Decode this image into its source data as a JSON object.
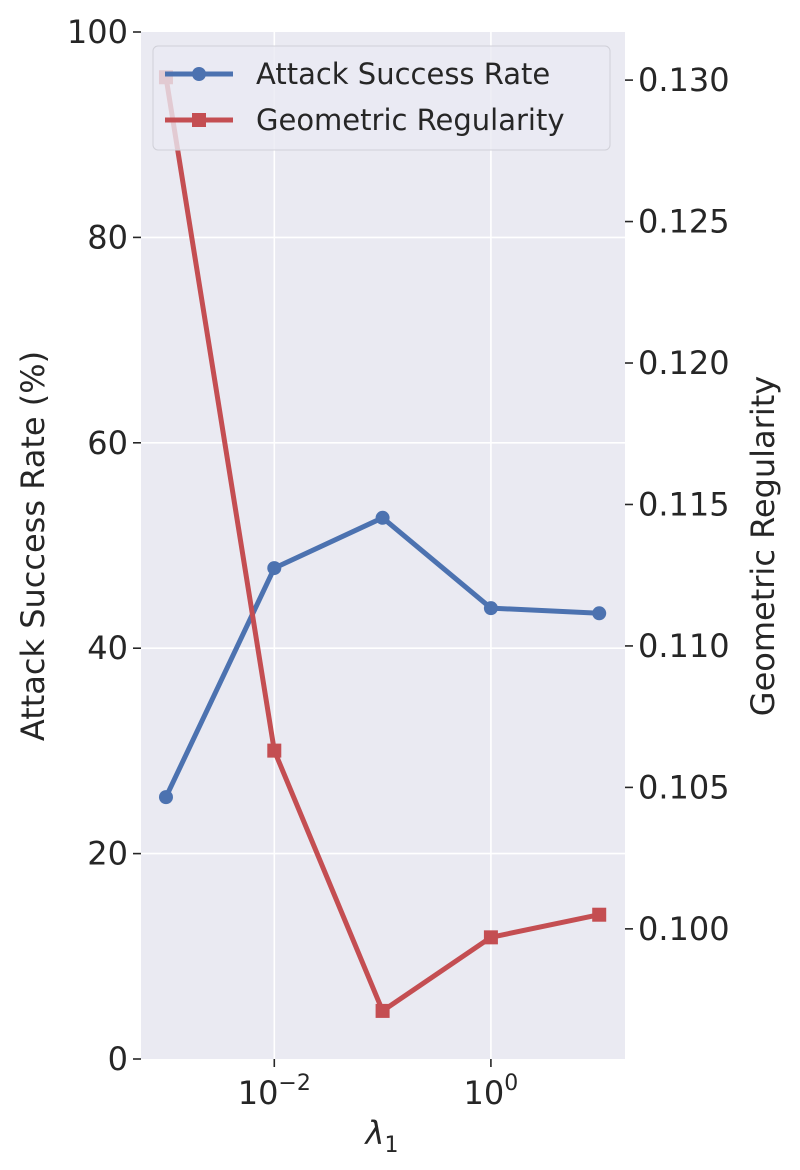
{
  "chart_data": {
    "type": "line",
    "x_scale": "log",
    "x": [
      0.001,
      0.01,
      0.1,
      1,
      10
    ],
    "xlabel": "λ",
    "xlabel_subscript": "1",
    "xtick_labels": [
      {
        "value": 0.01,
        "base": "10",
        "exponent": "−2"
      },
      {
        "value": 1,
        "base": "10",
        "exponent": "0"
      }
    ],
    "grid": true,
    "legend_position": "top-right",
    "y_left": {
      "label": "Attack Success Rate (%)",
      "lim": [
        0,
        100
      ],
      "ticks": [
        0,
        20,
        40,
        60,
        80,
        100
      ],
      "tick_labels": [
        "0",
        "20",
        "40",
        "60",
        "80",
        "100"
      ]
    },
    "y_right": {
      "label": "Geometric Regularity",
      "lim": [
        0.0954,
        0.1317
      ],
      "ticks": [
        0.1,
        0.105,
        0.11,
        0.115,
        0.12,
        0.125,
        0.13
      ],
      "tick_labels": [
        "0.100",
        "0.105",
        "0.110",
        "0.115",
        "0.120",
        "0.125",
        "0.130"
      ]
    },
    "series": [
      {
        "name": "Attack Success Rate",
        "axis": "left",
        "color": "#4c72b0",
        "marker": "circle",
        "values": [
          25.5,
          47.8,
          52.7,
          43.9,
          43.4
        ]
      },
      {
        "name": "Geometric Regularity",
        "axis": "right",
        "color": "#c44e52",
        "marker": "square",
        "values": [
          0.1301,
          0.1063,
          0.0971,
          0.0997,
          0.1005
        ]
      }
    ]
  }
}
